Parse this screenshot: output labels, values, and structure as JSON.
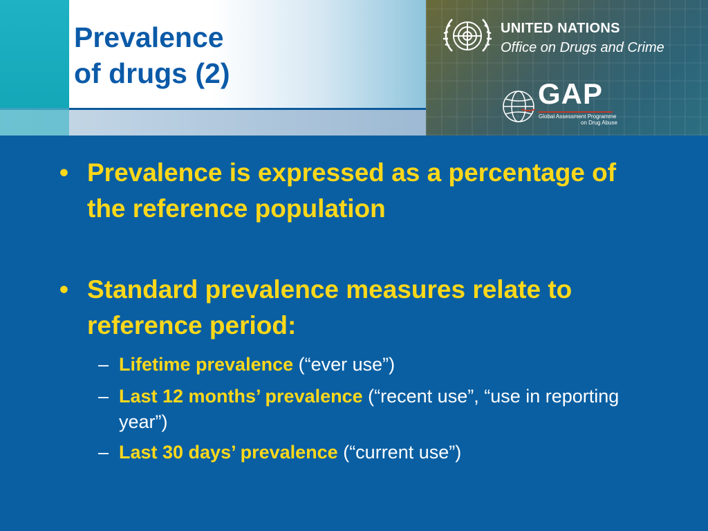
{
  "slide": {
    "title_line1": "Prevalence",
    "title_line2": "of drugs (2)"
  },
  "branding": {
    "org_name": "UNITED NATIONS",
    "org_office": "Office on Drugs and Crime",
    "program_acronym": "GAP",
    "program_name_line1": "Global Assessment Programme",
    "program_name_line2": "on Drug Abuse"
  },
  "bullets": [
    {
      "marker": "•",
      "text": "Prevalence is expressed as a percentage of the reference population"
    },
    {
      "marker": "•",
      "text": "Standard prevalence measures relate to reference period:"
    }
  ],
  "sub_bullets": [
    {
      "marker": "–",
      "term": "Lifetime prevalence",
      "desc": " (“ever use”)"
    },
    {
      "marker": "–",
      "term": "Last 12 months’ prevalence",
      "desc": " (“recent use”, “use in reporting year”)"
    },
    {
      "marker": "–",
      "term": "Last 30 days’ prevalence",
      "desc": " (“current use”)"
    }
  ],
  "colors": {
    "background": "#0a5fa2",
    "bullet_text": "#ffd81a",
    "title_text": "#0b5aa8",
    "sub_text": "#ffffff"
  },
  "icons": [
    "un-emblem-icon",
    "gap-globe-icon"
  ]
}
